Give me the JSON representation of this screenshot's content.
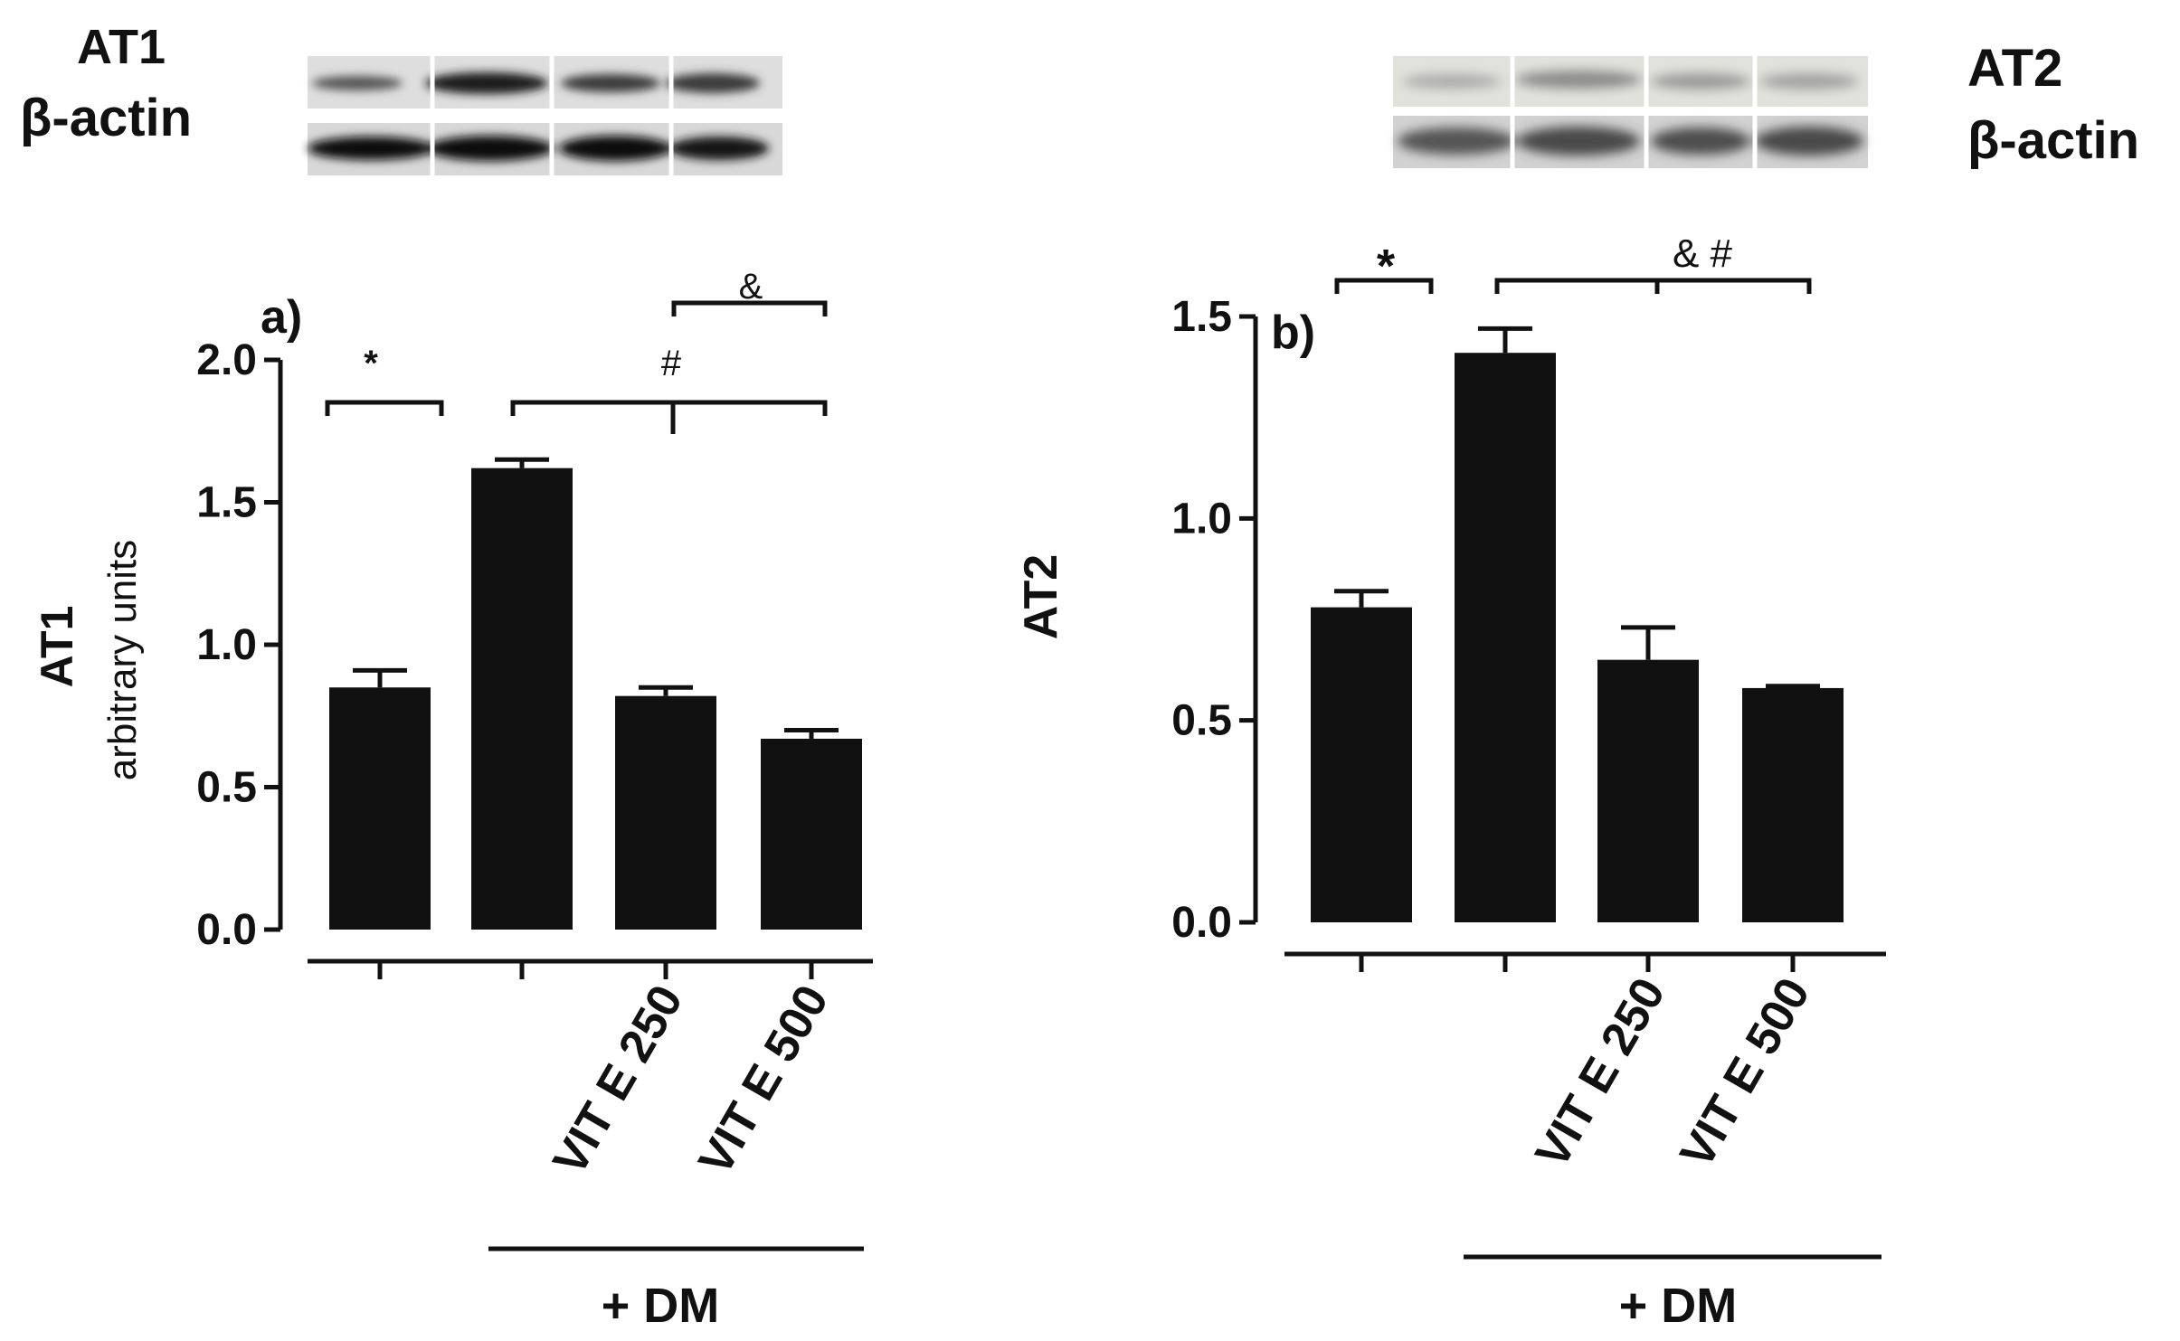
{
  "blots": {
    "left": {
      "protein_label": "AT1",
      "control_label": "β-actin"
    },
    "right": {
      "protein_label": "AT2",
      "control_label": "β-actin"
    }
  },
  "chart_data": [
    {
      "type": "bar",
      "panel_label": "a)",
      "ylabel": "AT1",
      "ylabel_sub": "arbitrary units",
      "ylim": [
        0,
        2.0
      ],
      "yticks": [
        "0.0",
        "0.5",
        "1.0",
        "1.5",
        "2.0"
      ],
      "categories": [
        "",
        "",
        "VIT E 250",
        "VIT E 500"
      ],
      "group_label": "+ DM",
      "values": [
        0.85,
        1.62,
        0.82,
        0.67
      ],
      "errors": [
        0.06,
        0.03,
        0.03,
        0.03
      ],
      "significance": [
        "*",
        "#",
        "&"
      ],
      "bar_color": "#111111"
    },
    {
      "type": "bar",
      "panel_label": "b)",
      "ylabel": "AT2",
      "ylim": [
        0,
        1.5
      ],
      "yticks": [
        "0.0",
        "0.5",
        "1.0",
        "1.5"
      ],
      "categories": [
        "",
        "",
        "VIT E 250",
        "VIT E 500"
      ],
      "group_label": "+ DM",
      "values": [
        0.78,
        1.41,
        0.65,
        0.58
      ],
      "errors": [
        0.04,
        0.06,
        0.08,
        0.005
      ],
      "significance": [
        "*",
        "& #"
      ],
      "bar_color": "#111111"
    }
  ]
}
